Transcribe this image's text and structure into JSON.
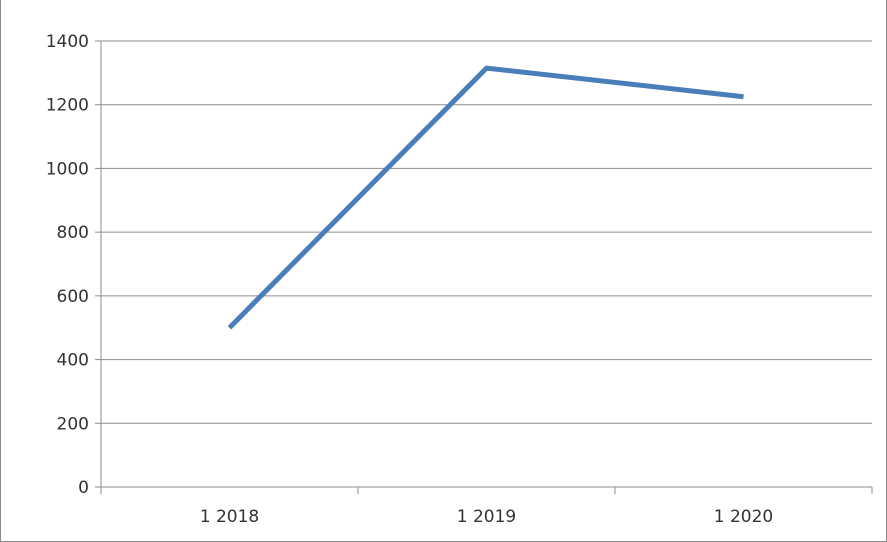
{
  "chart_data": {
    "type": "line",
    "title": "",
    "xlabel": "",
    "ylabel": "",
    "categories": [
      "1 2018",
      "1 2019",
      "1 2020"
    ],
    "series": [
      {
        "values": [
          500,
          1315,
          1225
        ],
        "color": "#4a7ebb"
      }
    ],
    "ylim": [
      0,
      1400
    ],
    "yticks": [
      0,
      200,
      400,
      600,
      800,
      1000,
      1200,
      1400
    ],
    "grid": true,
    "legend": "none",
    "colors": {
      "line": "#4a7ebb",
      "grid": "#8c8c8c",
      "axis": "#8c8c8c",
      "text": "#333333"
    }
  }
}
